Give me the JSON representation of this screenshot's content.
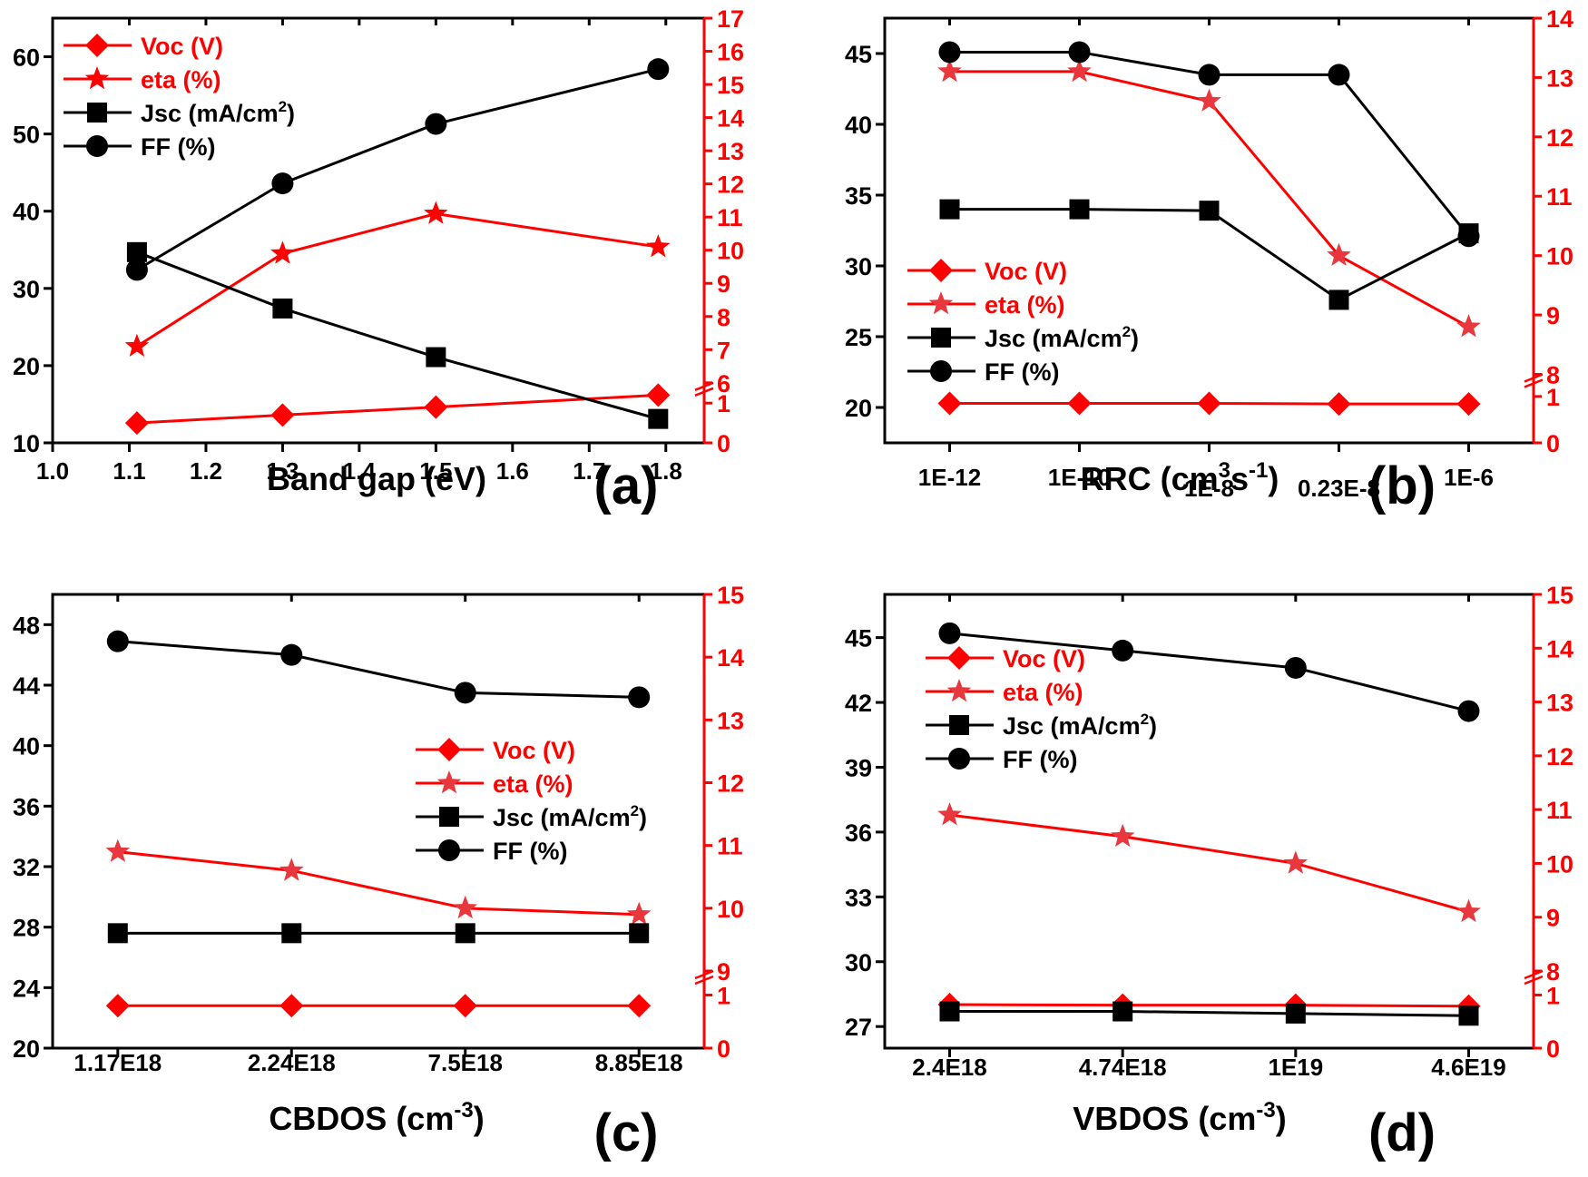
{
  "colors": {
    "red": "#ff0000",
    "black": "#000000",
    "star_red": "#e8383d"
  },
  "legend_labels": {
    "voc": "Voc (V)",
    "eta": "eta (%)",
    "jsc": "Jsc (mA/cm",
    "jsc_sup": "2",
    "jsc_close": ")",
    "ff": "FF (%)"
  },
  "chart_data": [
    {
      "id": "a",
      "type": "line",
      "panel_label": "(a)",
      "xlabel": "Band gap (eV)",
      "x_numeric": true,
      "x": [
        1.11,
        1.3,
        1.5,
        1.79
      ],
      "x_ticks": [
        "1.0",
        "1.1",
        "1.2",
        "1.3",
        "1.4",
        "1.5",
        "1.6",
        "1.7",
        "1.8"
      ],
      "x_tick_values": [
        1.0,
        1.1,
        1.2,
        1.3,
        1.4,
        1.5,
        1.6,
        1.7,
        1.8
      ],
      "xlim": [
        1.0,
        1.85
      ],
      "ylim_left": [
        10,
        65
      ],
      "y_ticks_left": [
        10,
        20,
        30,
        40,
        50,
        60
      ],
      "right_axis": {
        "lower": [
          0,
          1
        ],
        "upper": [
          6,
          17
        ],
        "ticks_lower": [
          0,
          1
        ],
        "ticks_upper": [
          6,
          7,
          8,
          9,
          10,
          11,
          12,
          13,
          14,
          15,
          16,
          17
        ]
      },
      "legend_position": "top-left",
      "series": [
        {
          "name": "Voc (V)",
          "axis": "right",
          "marker": "diamond",
          "color": "red",
          "values": [
            0.5,
            0.7,
            0.9,
            1.2
          ]
        },
        {
          "name": "eta (%)",
          "axis": "right",
          "marker": "star",
          "color": "red",
          "values": [
            7.1,
            9.9,
            11.1,
            10.1
          ]
        },
        {
          "name": "Jsc (mA/cm2)",
          "axis": "left",
          "marker": "square",
          "color": "black",
          "values": [
            34.7,
            27.4,
            21.1,
            13.1
          ]
        },
        {
          "name": "FF (%)",
          "axis": "left",
          "marker": "circle",
          "color": "black",
          "values": [
            32.4,
            43.6,
            51.3,
            58.4
          ]
        }
      ]
    },
    {
      "id": "b",
      "type": "line",
      "panel_label": "(b)",
      "xlabel": "RRC (cm",
      "xlabel_sup1": "3",
      "xlabel_mid": "s",
      "xlabel_sup2": "-1",
      "xlabel_end": ")",
      "x_numeric": false,
      "categories": [
        "1E-12",
        "1E-10",
        "1E-8",
        "0.23E-8",
        "1E-6"
      ],
      "ylim_left": [
        17.5,
        47.5
      ],
      "y_ticks_left": [
        20,
        25,
        30,
        35,
        40,
        45
      ],
      "right_axis": {
        "lower": [
          0,
          1
        ],
        "upper": [
          8,
          14
        ],
        "ticks_lower": [
          0,
          1
        ],
        "ticks_upper": [
          8,
          9,
          10,
          11,
          12,
          13,
          14
        ]
      },
      "legend_position": "center-left",
      "series": [
        {
          "name": "Voc (V)",
          "axis": "right",
          "marker": "diamond",
          "color": "red",
          "values": [
            0.85,
            0.85,
            0.85,
            0.84,
            0.84
          ]
        },
        {
          "name": "eta (%)",
          "axis": "right",
          "marker": "star",
          "color": "star_red",
          "values": [
            13.1,
            13.1,
            12.6,
            10.0,
            8.8
          ]
        },
        {
          "name": "Jsc (mA/cm2)",
          "axis": "left",
          "marker": "square",
          "color": "black",
          "values": [
            34.0,
            34.0,
            33.9,
            27.6,
            32.3
          ]
        },
        {
          "name": "FF (%)",
          "axis": "left",
          "marker": "circle",
          "color": "black",
          "values": [
            45.1,
            45.1,
            43.5,
            43.5,
            32.1
          ]
        }
      ]
    },
    {
      "id": "c",
      "type": "line",
      "panel_label": "(c)",
      "xlabel": "CBDOS (cm",
      "xlabel_sup1": "-3",
      "xlabel_end": ")",
      "x_numeric": false,
      "categories": [
        "1.17E18",
        "2.24E18",
        "7.5E18",
        "8.85E18"
      ],
      "ylim_left": [
        20,
        50
      ],
      "y_ticks_left": [
        20,
        24,
        28,
        32,
        36,
        40,
        44,
        48
      ],
      "right_axis": {
        "lower": [
          0,
          1
        ],
        "upper": [
          9,
          15
        ],
        "ticks_lower": [
          0,
          1
        ],
        "ticks_upper": [
          9,
          10,
          11,
          12,
          13,
          14,
          15
        ]
      },
      "legend_position": "center-right",
      "series": [
        {
          "name": "Voc (V)",
          "axis": "right",
          "marker": "diamond",
          "color": "red",
          "values": [
            0.8,
            0.8,
            0.8,
            0.8
          ]
        },
        {
          "name": "eta (%)",
          "axis": "right",
          "marker": "star",
          "color": "star_red",
          "values": [
            10.9,
            10.6,
            10.0,
            9.9
          ]
        },
        {
          "name": "Jsc (mA/cm2)",
          "axis": "left",
          "marker": "square",
          "color": "black",
          "values": [
            27.6,
            27.6,
            27.6,
            27.6
          ]
        },
        {
          "name": "FF (%)",
          "axis": "left",
          "marker": "circle",
          "color": "black",
          "values": [
            46.9,
            46.0,
            43.5,
            43.2
          ]
        }
      ]
    },
    {
      "id": "d",
      "type": "line",
      "panel_label": "(d)",
      "xlabel": "VBDOS (cm",
      "xlabel_sup1": "-3",
      "xlabel_end": ")",
      "x_numeric": false,
      "categories": [
        "2.4E18",
        "4.74E18",
        "1E19",
        "4.6E19"
      ],
      "ylim_left": [
        26,
        47
      ],
      "y_ticks_left": [
        27,
        30,
        33,
        36,
        39,
        42,
        45
      ],
      "right_axis": {
        "lower": [
          0,
          1
        ],
        "upper": [
          8,
          15
        ],
        "ticks_lower": [
          0,
          1
        ],
        "ticks_upper": [
          8,
          9,
          10,
          11,
          12,
          13,
          14,
          15
        ]
      },
      "legend_position": "top-left",
      "series": [
        {
          "name": "Voc (V)",
          "axis": "right",
          "marker": "diamond",
          "color": "red",
          "values": [
            0.82,
            0.81,
            0.81,
            0.79
          ]
        },
        {
          "name": "eta (%)",
          "axis": "right",
          "marker": "star",
          "color": "star_red",
          "values": [
            10.9,
            10.5,
            10.0,
            9.1
          ]
        },
        {
          "name": "Jsc (mA/cm2)",
          "axis": "left",
          "marker": "square",
          "color": "black",
          "values": [
            27.7,
            27.7,
            27.6,
            27.5
          ]
        },
        {
          "name": "FF (%)",
          "axis": "left",
          "marker": "circle",
          "color": "black",
          "values": [
            45.2,
            44.4,
            43.6,
            41.6
          ]
        }
      ]
    }
  ]
}
